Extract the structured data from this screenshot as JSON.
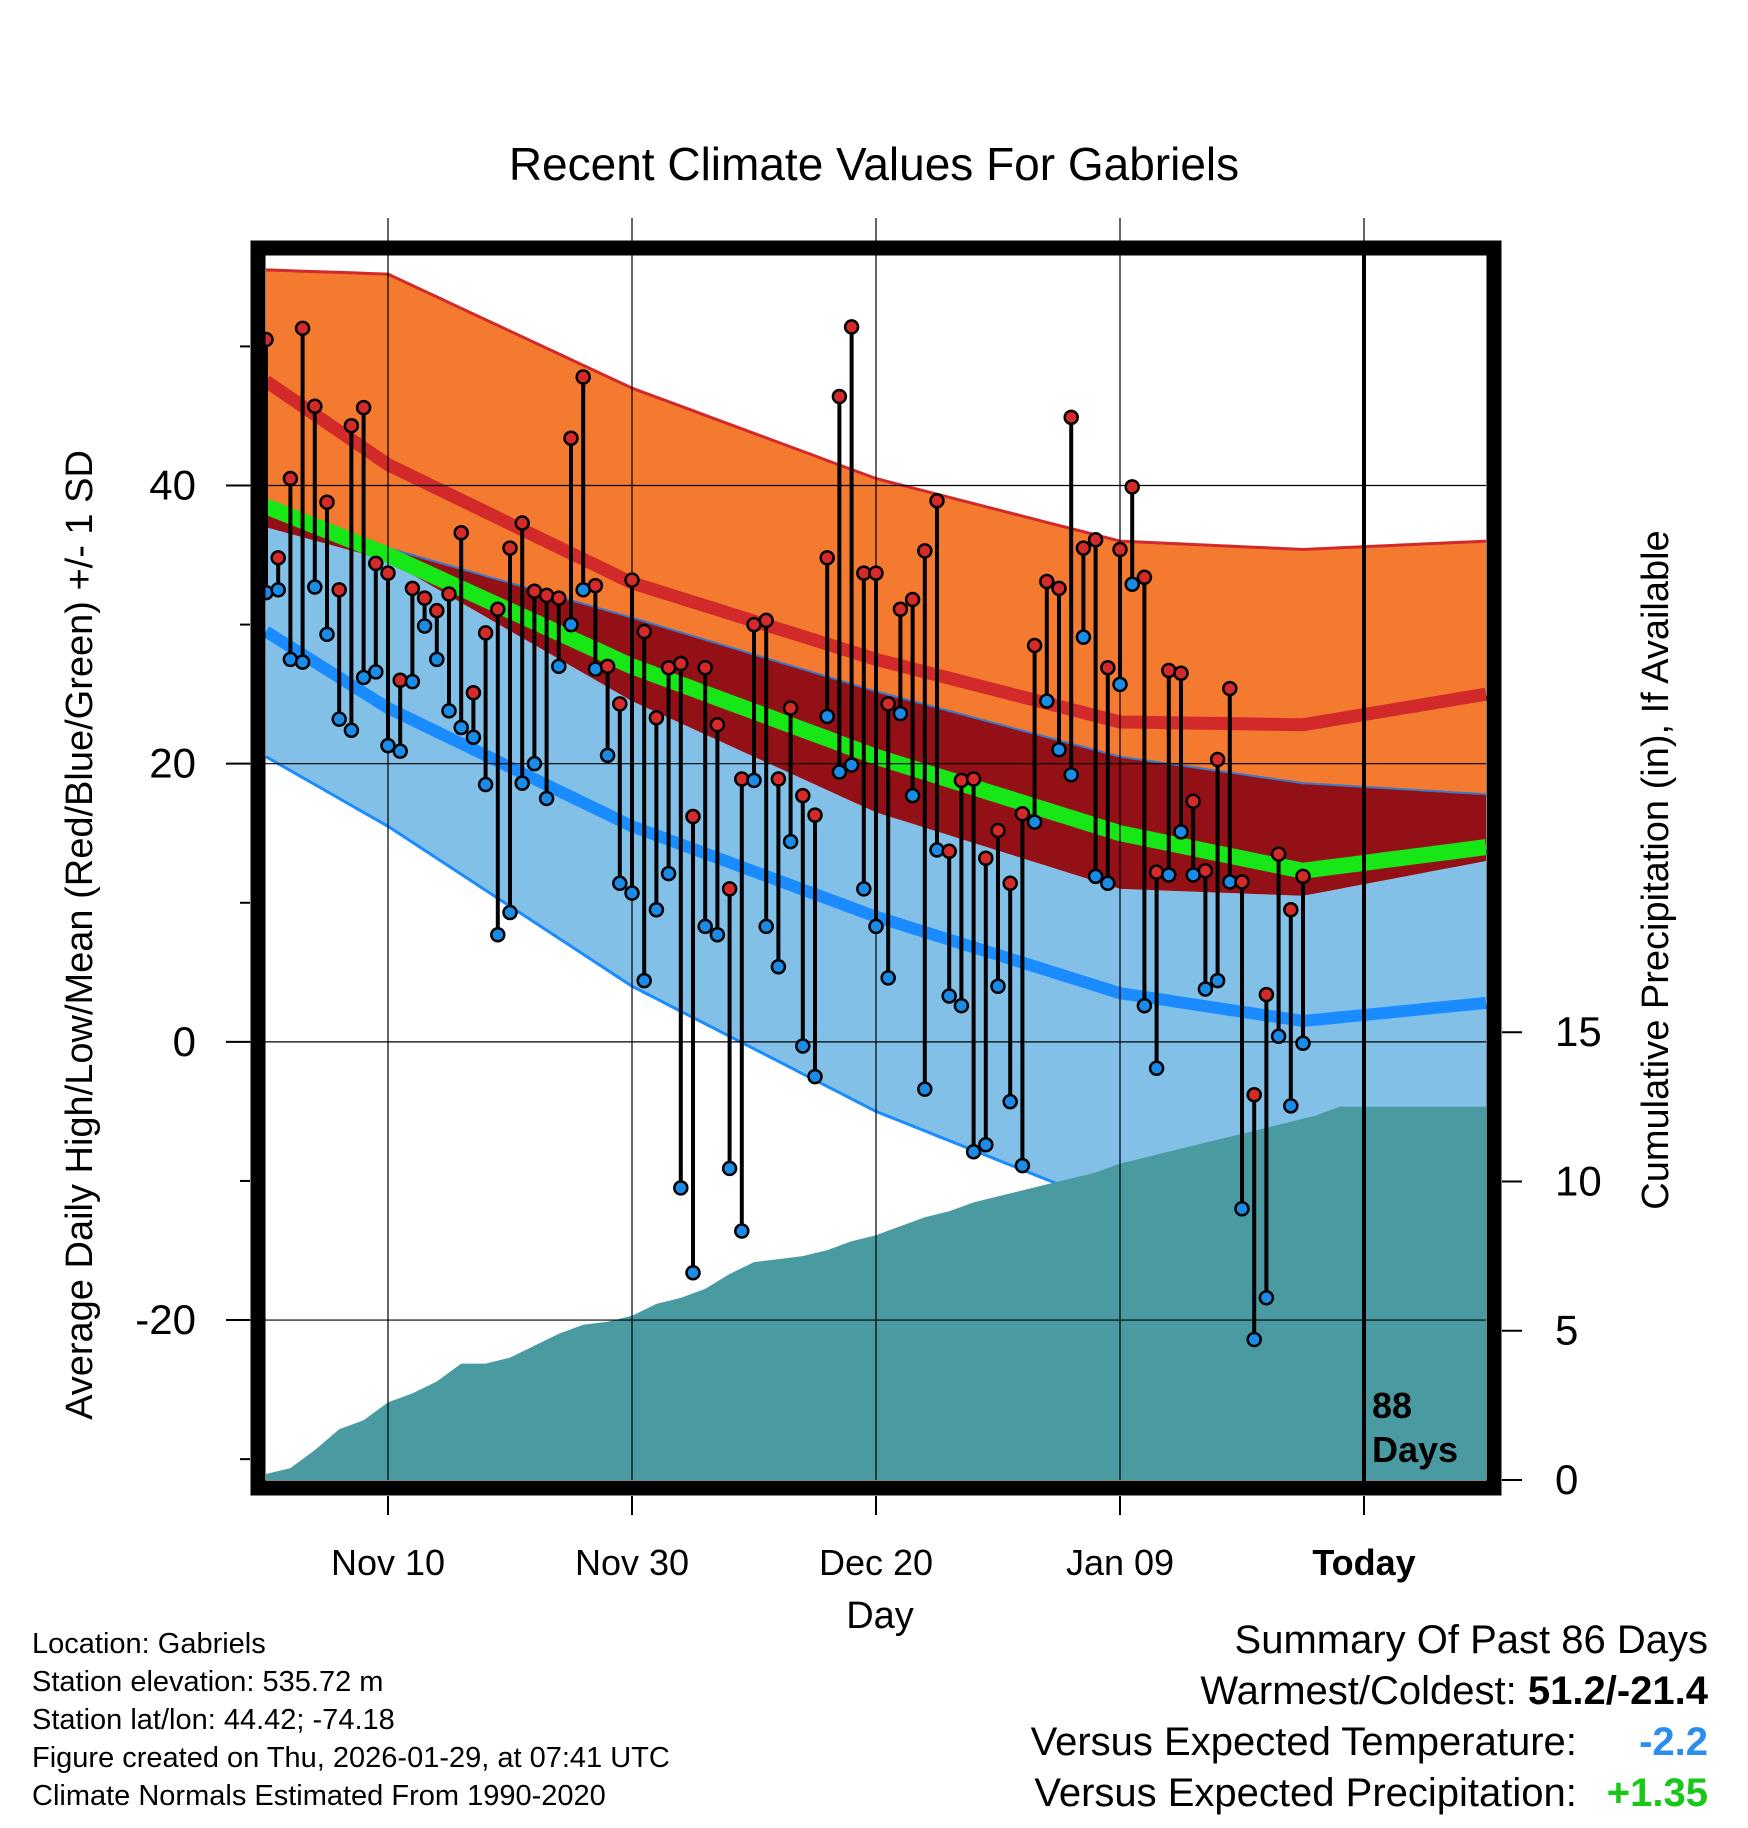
{
  "chart_data": {
    "type": "line",
    "title": "Recent Climate Values For Gabriels",
    "xlabel": "Day",
    "ylabel": "Average Daily High/Low/Mean (Red/Blue/Green) +/- 1 SD",
    "y2label": "Cumulative Precipitation (in), If Available",
    "x_tick_labels": [
      "Nov 10",
      "Nov 30",
      "Dec 20",
      "Jan 09",
      "Today"
    ],
    "y_ticks": [
      40,
      20,
      0,
      -20
    ],
    "y2_ticks": [
      15,
      10,
      5,
      0
    ],
    "ylim": [
      -31.5,
      56.5
    ],
    "y2lim": [
      0,
      41
    ],
    "xlim": [
      -10,
      90
    ],
    "today_label": "88\nDays",
    "normals": {
      "high_mean": [
        [
          -10,
          47.5
        ],
        [
          0,
          41.5
        ],
        [
          20,
          33
        ],
        [
          40,
          27.5
        ],
        [
          60,
          23
        ],
        [
          75,
          22.8
        ],
        [
          90,
          25
        ]
      ],
      "high_sd_upper": [
        [
          -10,
          55.5
        ],
        [
          0,
          55.2
        ],
        [
          20,
          47
        ],
        [
          40,
          40.5
        ],
        [
          60,
          36
        ],
        [
          75,
          35.4
        ],
        [
          90,
          36
        ]
      ],
      "high_sd_lower": [
        [
          -10,
          38
        ],
        [
          0,
          35.5
        ],
        [
          20,
          30.5
        ],
        [
          40,
          25.2
        ],
        [
          60,
          20.5
        ],
        [
          75,
          18.6
        ],
        [
          90,
          17.8
        ]
      ],
      "mean": [
        [
          -10,
          38.5
        ],
        [
          0,
          35
        ],
        [
          20,
          27
        ],
        [
          40,
          20.5
        ],
        [
          60,
          15
        ],
        [
          75,
          12.3
        ],
        [
          90,
          14
        ]
      ],
      "low_sd_upper": [
        [
          -10,
          37
        ],
        [
          0,
          34.6
        ],
        [
          20,
          24.5
        ],
        [
          40,
          16.5
        ],
        [
          60,
          11
        ],
        [
          75,
          10.5
        ],
        [
          90,
          13
        ]
      ],
      "low_mean": [
        [
          -10,
          29.5
        ],
        [
          0,
          24
        ],
        [
          20,
          15.5
        ],
        [
          40,
          9
        ],
        [
          60,
          3.5
        ],
        [
          75,
          1.5
        ],
        [
          90,
          2.8
        ]
      ],
      "low_sd_lower": [
        [
          -10,
          20.5
        ],
        [
          0,
          15.5
        ],
        [
          20,
          4
        ],
        [
          40,
          -5
        ],
        [
          60,
          -12
        ],
        [
          75,
          -13
        ]
      ]
    },
    "precipitation": {
      "cumulative": [
        [
          -10,
          0.2
        ],
        [
          -8,
          0.4
        ],
        [
          -6,
          1.0
        ],
        [
          -4,
          1.7
        ],
        [
          -2,
          2.0
        ],
        [
          0,
          2.6
        ],
        [
          2,
          2.9
        ],
        [
          4,
          3.3
        ],
        [
          6,
          3.9
        ],
        [
          8,
          3.9
        ],
        [
          10,
          4.1
        ],
        [
          12,
          4.5
        ],
        [
          14,
          4.9
        ],
        [
          16,
          5.2
        ],
        [
          18,
          5.3
        ],
        [
          20,
          5.5
        ],
        [
          22,
          5.9
        ],
        [
          24,
          6.1
        ],
        [
          26,
          6.4
        ],
        [
          28,
          6.9
        ],
        [
          30,
          7.3
        ],
        [
          32,
          7.4
        ],
        [
          34,
          7.5
        ],
        [
          36,
          7.7
        ],
        [
          38,
          8.0
        ],
        [
          40,
          8.2
        ],
        [
          42,
          8.5
        ],
        [
          44,
          8.8
        ],
        [
          46,
          9.0
        ],
        [
          48,
          9.3
        ],
        [
          50,
          9.5
        ],
        [
          52,
          9.7
        ],
        [
          54,
          9.9
        ],
        [
          56,
          10.1
        ],
        [
          58,
          10.3
        ],
        [
          60,
          10.6
        ],
        [
          62,
          10.8
        ],
        [
          64,
          11.0
        ],
        [
          66,
          11.2
        ],
        [
          68,
          11.4
        ],
        [
          70,
          11.6
        ],
        [
          72,
          11.8
        ],
        [
          74,
          12.0
        ],
        [
          76,
          12.2
        ],
        [
          78,
          12.5
        ],
        [
          80,
          12.5
        ],
        [
          90,
          12.5
        ]
      ]
    },
    "observations": {
      "day": [
        -10,
        -9,
        -8,
        -7,
        -6,
        -5,
        -4,
        -3,
        -2,
        -1,
        0,
        1,
        2,
        3,
        4,
        5,
        6,
        7,
        8,
        9,
        10,
        11,
        12,
        13,
        14,
        15,
        16,
        17,
        18,
        19,
        20,
        21,
        22,
        23,
        24,
        25,
        26,
        27,
        28,
        29,
        30,
        31,
        32,
        33,
        34,
        35,
        36,
        37,
        38,
        39,
        40,
        41,
        42,
        43,
        44,
        45,
        46,
        47,
        48,
        49,
        50,
        51,
        52,
        53,
        54,
        55,
        56,
        57,
        58,
        59,
        60,
        61,
        62,
        63,
        64,
        65,
        66,
        67,
        68,
        69,
        70,
        71,
        72,
        73,
        74,
        75,
        76,
        77,
        78,
        79
      ],
      "high": [
        50.5,
        34.8,
        40.5,
        51.3,
        45.7,
        38.8,
        32.5,
        44.3,
        45.6,
        34.4,
        33.7,
        26.0,
        32.6,
        31.9,
        31.0,
        32.2,
        36.6,
        25.1,
        29.4,
        31.1,
        35.5,
        37.3,
        32.4,
        32.1,
        31.9,
        43.4,
        47.8,
        32.8,
        27.0,
        24.3,
        33.2,
        29.5,
        23.3,
        26.9,
        27.2,
        16.2,
        26.9,
        22.8,
        11.0,
        18.9,
        30.0,
        30.3,
        18.9,
        24.0,
        17.7,
        16.3,
        34.8,
        46.4,
        51.4,
        33.7,
        33.7,
        24.3,
        31.1,
        31.8,
        35.3,
        38.9,
        13.7,
        18.8,
        18.9,
        13.2,
        15.2,
        11.4,
        16.4,
        28.5,
        33.1,
        32.6,
        44.9,
        35.5,
        36.1,
        26.9,
        35.4,
        39.9,
        33.4,
        12.2,
        26.7,
        26.5,
        17.3,
        12.3,
        20.3,
        25.4,
        11.5,
        -3.8,
        3.4,
        13.5,
        9.5,
        11.9
      ],
      "low": [
        32.3,
        32.5,
        27.5,
        27.3,
        32.7,
        29.3,
        23.2,
        22.4,
        26.2,
        26.6,
        21.3,
        20.9,
        25.9,
        29.9,
        27.5,
        23.8,
        22.6,
        21.9,
        18.5,
        7.7,
        9.3,
        18.6,
        20.0,
        17.5,
        27.0,
        30.0,
        32.5,
        26.8,
        20.6,
        11.4,
        10.7,
        4.4,
        9.5,
        12.1,
        -10.5,
        -16.6,
        8.3,
        7.7,
        -9.1,
        -13.6,
        18.8,
        8.3,
        5.4,
        14.4,
        -0.3,
        -2.5,
        23.4,
        19.4,
        19.9,
        11.0,
        8.3,
        4.6,
        23.6,
        17.7,
        -3.4,
        13.8,
        3.3,
        2.6,
        -7.9,
        -7.4,
        4.0,
        -4.3,
        -8.9,
        15.8,
        24.5,
        21.0,
        19.2,
        29.1,
        11.9,
        11.4,
        25.7,
        32.9,
        2.6,
        -1.9,
        12.0,
        15.1,
        12.0,
        3.8,
        4.4,
        11.5,
        -12.0,
        -21.4,
        -18.4,
        0.4,
        -4.6,
        -0.1
      ]
    }
  },
  "info": {
    "location": "Location: Gabriels",
    "elevation": "Station elevation: 535.72 m",
    "latlon": "Station lat/lon: 44.42; -74.18",
    "created": "Figure created on Thu, 2026-01-29, at 07:41 UTC",
    "normals": "Climate Normals Estimated From 1990-2020"
  },
  "summary": {
    "title": "Summary Of Past 86 Days",
    "warm_cold_label": "Warmest/Coldest:",
    "warm_cold_value": "51.2/-21.4",
    "temp_label": "Versus Expected Temperature:",
    "temp_value": "-2.2",
    "precip_label": "Versus Expected Precipitation:",
    "precip_value": "+1.35"
  },
  "colors": {
    "high_band": "#f47a30",
    "high_mean_line": "#d22a2a",
    "mean_band": "#941017",
    "mean_line": "#17e617",
    "low_band": "#82c0e8",
    "low_mean_line": "#1a8cff",
    "precip_fill": "#4a9aa2",
    "high_dot": "#d42a2a",
    "low_dot": "#1a8ce8",
    "temp_value": "#2a8ef0",
    "precip_value": "#18c818"
  }
}
